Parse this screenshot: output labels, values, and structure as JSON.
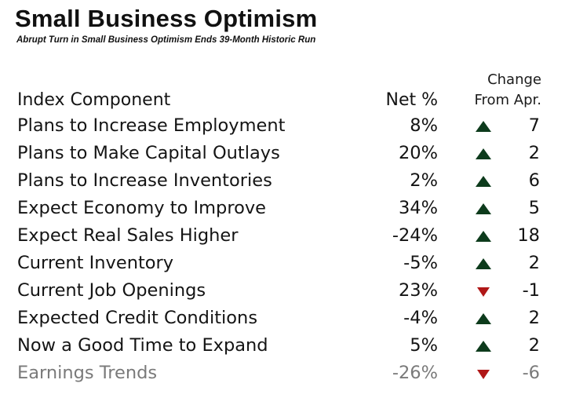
{
  "title": "Small Business Optimism",
  "subtitle": "Abrupt Turn in Small Business Optimism Ends 39-Month Historic Run",
  "colors": {
    "up": "#0d3b1c",
    "down": "#b01717",
    "text": "#141414",
    "faded": "#7a7a7a"
  },
  "chart_data": {
    "type": "table",
    "columns": [
      "Index Component",
      "Net %",
      "Change From Apr."
    ],
    "header": {
      "component": "Index Component",
      "net": "Net %",
      "change_line1": "Change",
      "change_line2": "From Apr."
    },
    "rows": [
      {
        "component": "Plans to Increase Employment",
        "net": "8%",
        "direction": "up",
        "change": "7"
      },
      {
        "component": "Plans to Make Capital Outlays",
        "net": "20%",
        "direction": "up",
        "change": "2"
      },
      {
        "component": "Plans to Increase Inventories",
        "net": "2%",
        "direction": "up",
        "change": "6"
      },
      {
        "component": "Expect Economy to Improve",
        "net": "34%",
        "direction": "up",
        "change": "5"
      },
      {
        "component": "Expect Real Sales Higher",
        "net": "-24%",
        "direction": "up",
        "change": "18"
      },
      {
        "component": "Current Inventory",
        "net": "-5%",
        "direction": "up",
        "change": "2"
      },
      {
        "component": "Current Job Openings",
        "net": "23%",
        "direction": "down",
        "change": "-1"
      },
      {
        "component": "Expected Credit Conditions",
        "net": "-4%",
        "direction": "up",
        "change": "2"
      },
      {
        "component": "Now a Good Time to Expand",
        "net": "5%",
        "direction": "up",
        "change": "2"
      },
      {
        "component": "Earnings Trends",
        "net": "-26%",
        "direction": "down",
        "change": "-6",
        "faded": true
      }
    ]
  }
}
